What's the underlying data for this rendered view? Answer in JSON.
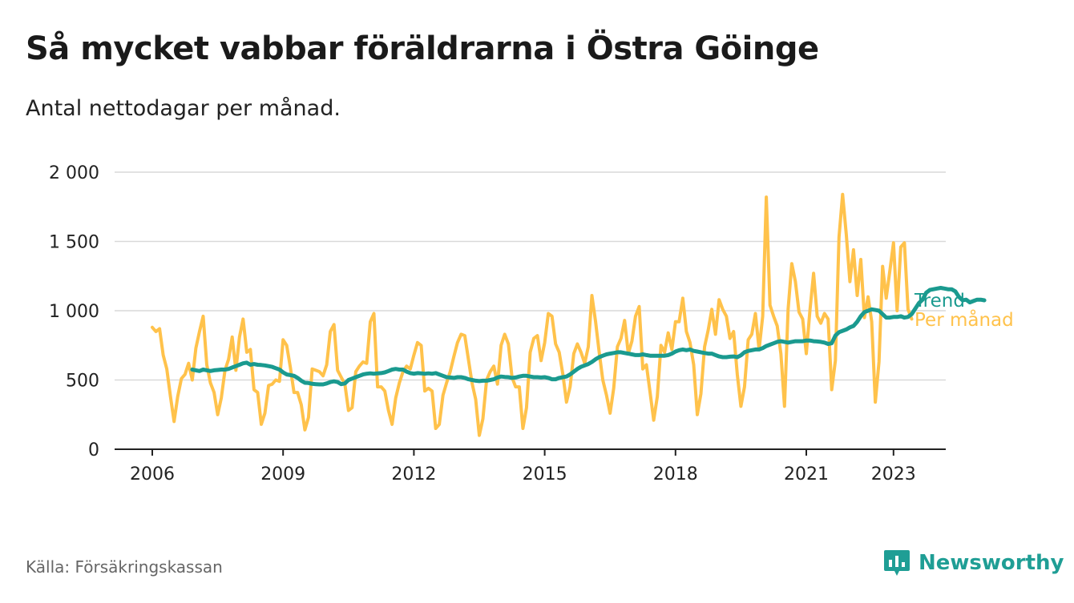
{
  "title": "Så mycket vabbar föräldrarna i Östra Göinge",
  "subtitle": "Antal nettodagar per månad.",
  "source": "Källa: Försäkringskassan",
  "brand": "Newsworthy",
  "colors": {
    "trend": "#1a9a8f",
    "monthly": "#ffc24b",
    "grid": "#d9d9d9",
    "brand": "#1f9e95"
  },
  "chart_data": {
    "type": "line",
    "title": "Så mycket vabbar föräldrarna i Östra Göinge",
    "subtitle": "Antal nettodagar per månad.",
    "xlabel": "",
    "ylabel": "",
    "ylim": [
      0,
      2000
    ],
    "xlim": [
      "2005-10",
      "2023-10"
    ],
    "y_ticks": [
      0,
      500,
      1000,
      1500,
      2000
    ],
    "y_tick_labels": [
      "0",
      "500",
      "1 000",
      "1 500",
      "2 000"
    ],
    "x_ticks": [
      "2006-01",
      "2009-01",
      "2012-01",
      "2015-01",
      "2018-01",
      "2021-01",
      "2023-01"
    ],
    "x_tick_labels": [
      "2006",
      "2009",
      "2012",
      "2015",
      "2018",
      "2021",
      "2023"
    ],
    "grid": true,
    "legend": "end-of-line labels",
    "series": [
      {
        "name": "Per månad",
        "color": "#ffc24b",
        "start": "2006-01",
        "values": [
          880,
          850,
          870,
          680,
          580,
          380,
          200,
          380,
          510,
          540,
          620,
          500,
          730,
          850,
          960,
          610,
          480,
          410,
          250,
          370,
          570,
          650,
          810,
          570,
          810,
          940,
          700,
          720,
          430,
          410,
          180,
          260,
          460,
          470,
          500,
          490,
          790,
          750,
          590,
          410,
          410,
          320,
          140,
          230,
          580,
          570,
          560,
          530,
          610,
          850,
          900,
          570,
          520,
          470,
          280,
          300,
          560,
          600,
          630,
          620,
          920,
          980,
          450,
          450,
          420,
          280,
          180,
          370,
          480,
          560,
          600,
          580,
          680,
          770,
          750,
          420,
          440,
          420,
          150,
          180,
          390,
          480,
          560,
          670,
          770,
          830,
          820,
          650,
          480,
          360,
          100,
          220,
          500,
          560,
          600,
          470,
          750,
          830,
          760,
          520,
          450,
          450,
          150,
          300,
          700,
          800,
          820,
          640,
          770,
          980,
          960,
          760,
          700,
          540,
          340,
          450,
          690,
          760,
          700,
          620,
          740,
          1110,
          920,
          700,
          500,
          390,
          260,
          440,
          740,
          800,
          930,
          690,
          780,
          960,
          1030,
          580,
          610,
          410,
          210,
          380,
          750,
          700,
          840,
          720,
          920,
          920,
          1090,
          850,
          770,
          610,
          250,
          400,
          740,
          860,
          1010,
          830,
          1080,
          1010,
          960,
          800,
          850,
          540,
          310,
          450,
          790,
          830,
          980,
          720,
          960,
          1820,
          1040,
          960,
          890,
          690,
          310,
          1010,
          1340,
          1210,
          990,
          940,
          690,
          1000,
          1270,
          960,
          910,
          980,
          940,
          430,
          640,
          1530,
          1840,
          1550,
          1210,
          1440,
          1110,
          1370,
          950,
          1100,
          920,
          340,
          630,
          1320,
          1090,
          1290,
          1490,
          1000,
          1460,
          1490,
          1010,
          940
        ]
      },
      {
        "name": "Trend",
        "color": "#1a9a8f",
        "start": "2006-12",
        "values": [
          575,
          570,
          565,
          575,
          570,
          565,
          570,
          572,
          575,
          575,
          580,
          590,
          600,
          610,
          620,
          625,
          610,
          615,
          610,
          608,
          605,
          600,
          595,
          585,
          575,
          555,
          540,
          535,
          530,
          515,
          495,
          480,
          478,
          472,
          470,
          468,
          468,
          475,
          485,
          490,
          485,
          470,
          475,
          500,
          510,
          520,
          530,
          540,
          545,
          548,
          545,
          548,
          550,
          555,
          565,
          575,
          580,
          575,
          575,
          560,
          550,
          545,
          550,
          548,
          545,
          548,
          545,
          550,
          540,
          530,
          520,
          518,
          515,
          520,
          520,
          515,
          505,
          500,
          495,
          492,
          495,
          495,
          500,
          505,
          518,
          525,
          522,
          520,
          515,
          518,
          525,
          530,
          530,
          525,
          520,
          520,
          518,
          520,
          515,
          505,
          505,
          515,
          520,
          525,
          540,
          560,
          580,
          595,
          605,
          615,
          630,
          650,
          665,
          675,
          685,
          690,
          695,
          700,
          700,
          695,
          690,
          685,
          680,
          680,
          685,
          680,
          675,
          675,
          675,
          675,
          675,
          680,
          690,
          705,
          715,
          720,
          715,
          720,
          710,
          705,
          700,
          695,
          690,
          690,
          680,
          670,
          665,
          665,
          668,
          670,
          665,
          678,
          700,
          710,
          715,
          720,
          720,
          730,
          745,
          755,
          765,
          775,
          780,
          775,
          770,
          775,
          780,
          780,
          780,
          785,
          785,
          780,
          778,
          775,
          770,
          760,
          765,
          820,
          845,
          855,
          865,
          880,
          890,
          920,
          960,
          990,
          1000,
          1010,
          1005,
          1000,
          975,
          950,
          950,
          955,
          955,
          960,
          950,
          955,
          975,
          1015,
          1055,
          1080,
          1130,
          1150,
          1155,
          1160,
          1165,
          1160,
          1155,
          1155,
          1140,
          1100,
          1075,
          1080,
          1060,
          1070,
          1080,
          1080,
          1075
        ]
      }
    ]
  }
}
